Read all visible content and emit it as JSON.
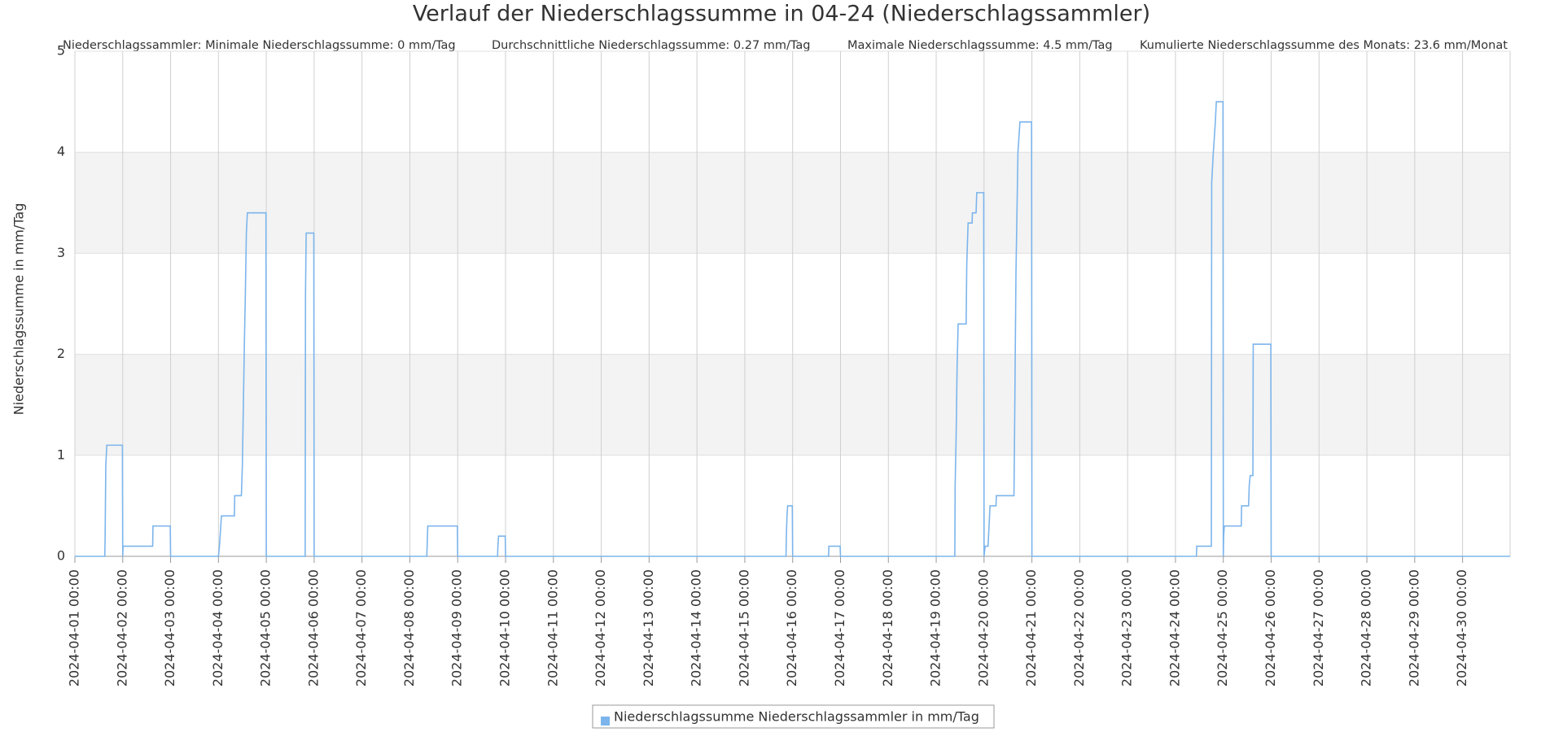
{
  "chart_data": {
    "type": "line",
    "title": "Verlauf der Niederschlagssumme in 04-24 (Niederschlagssammler)",
    "subtitles": [
      "Niederschlagssammler: Minimale Niederschlagssumme: 0 mm/Tag",
      "Durchschnittliche Niederschlagssumme: 0.27 mm/Tag",
      "Maximale Niederschlagssumme: 4.5 mm/Tag",
      "Kumulierte Niederschlagssumme des Monats: 23.6 mm/Monat"
    ],
    "y_label": "Niederschlagssumme in mm/Tag",
    "x": [
      "2024-04-01 00:00",
      "2024-04-01 15:00",
      "2024-04-01 15:10",
      "2024-04-01 15:30",
      "2024-04-01 16:00",
      "2024-04-01 23:50",
      "2024-04-02 00:00",
      "2024-04-02 00:10",
      "2024-04-02 15:00",
      "2024-04-02 15:10",
      "2024-04-02 23:50",
      "2024-04-03 00:00",
      "2024-04-04 00:00",
      "2024-04-04 00:30",
      "2024-04-04 01:30",
      "2024-04-04 08:00",
      "2024-04-04 08:10",
      "2024-04-04 11:30",
      "2024-04-04 12:00",
      "2024-04-04 12:30",
      "2024-04-04 13:00",
      "2024-04-04 13:30",
      "2024-04-04 14:00",
      "2024-04-04 14:30",
      "2024-04-04 23:50",
      "2024-04-05 00:00",
      "2024-04-05 19:30",
      "2024-04-05 19:40",
      "2024-04-05 20:00",
      "2024-04-05 23:50",
      "2024-04-06 00:00",
      "2024-04-08 08:30",
      "2024-04-08 08:40",
      "2024-04-08 09:00",
      "2024-04-08 23:50",
      "2024-04-09 00:00",
      "2024-04-09 20:00",
      "2024-04-09 20:10",
      "2024-04-09 20:30",
      "2024-04-09 23:50",
      "2024-04-10 00:00",
      "2024-04-15 20:40",
      "2024-04-15 20:50",
      "2024-04-15 21:10",
      "2024-04-15 21:30",
      "2024-04-15 23:50",
      "2024-04-16 00:00",
      "2024-04-16 18:00",
      "2024-04-16 18:10",
      "2024-04-16 23:50",
      "2024-04-17 00:00",
      "2024-04-19 09:20",
      "2024-04-19 09:30",
      "2024-04-19 10:00",
      "2024-04-19 10:30",
      "2024-04-19 11:00",
      "2024-04-19 15:00",
      "2024-04-19 15:20",
      "2024-04-19 16:00",
      "2024-04-19 18:00",
      "2024-04-19 18:10",
      "2024-04-19 20:00",
      "2024-04-19 20:20",
      "2024-04-19 23:50",
      "2024-04-20 00:00",
      "2024-04-20 00:30",
      "2024-04-20 02:00",
      "2024-04-20 02:30",
      "2024-04-20 03:00",
      "2024-04-20 06:00",
      "2024-04-20 06:10",
      "2024-04-20 15:00",
      "2024-04-20 15:20",
      "2024-04-20 16:00",
      "2024-04-20 17:00",
      "2024-04-20 18:00",
      "2024-04-20 23:50",
      "2024-04-21 00:00",
      "2024-04-24 10:30",
      "2024-04-24 10:40",
      "2024-04-24 18:00",
      "2024-04-24 18:10",
      "2024-04-24 19:00",
      "2024-04-24 20:00",
      "2024-04-24 20:30",
      "2024-04-24 23:50",
      "2024-04-25 00:00",
      "2024-04-25 00:10",
      "2024-04-25 00:30",
      "2024-04-25 09:00",
      "2024-04-25 09:10",
      "2024-04-25 12:40",
      "2024-04-25 13:00",
      "2024-04-25 13:30",
      "2024-04-25 14:50",
      "2024-04-25 15:00",
      "2024-04-25 23:50",
      "2024-04-26 00:00",
      "2024-04-30 23:50"
    ],
    "series": [
      {
        "name": "Niederschlagssumme Niederschlagssammler in mm/Tag",
        "color": "#7cb5ec",
        "values": [
          0,
          0,
          0.2,
          0.9,
          1.1,
          1.1,
          0,
          0.1,
          0.1,
          0.3,
          0.3,
          0,
          0,
          0.1,
          0.4,
          0.4,
          0.6,
          0.6,
          0.9,
          1.5,
          2.1,
          2.6,
          3.2,
          3.4,
          3.4,
          0,
          0,
          2.6,
          3.2,
          3.2,
          0,
          0,
          0.1,
          0.3,
          0.3,
          0,
          0,
          0.1,
          0.2,
          0.2,
          0,
          0,
          0.2,
          0.4,
          0.5,
          0.5,
          0,
          0,
          0.1,
          0.1,
          0,
          0,
          0.7,
          1.2,
          1.9,
          2.3,
          2.3,
          2.9,
          3.3,
          3.3,
          3.4,
          3.4,
          3.6,
          3.6,
          0,
          0.1,
          0.1,
          0.3,
          0.5,
          0.5,
          0.6,
          0.6,
          1.3,
          2.8,
          4.0,
          4.3,
          4.3,
          0,
          0,
          0.1,
          0.1,
          3.7,
          4.0,
          4.3,
          4.5,
          4.5,
          0,
          0.2,
          0.3,
          0.3,
          0.5,
          0.5,
          0.7,
          0.8,
          0.8,
          2.1,
          2.1,
          0,
          0
        ]
      }
    ],
    "xlim": [
      "2024-04-01 00:00",
      "2024-04-30 23:50"
    ],
    "xticks": [
      "2024-04-01 00:00",
      "2024-04-02 00:00",
      "2024-04-03 00:00",
      "2024-04-04 00:00",
      "2024-04-05 00:00",
      "2024-04-06 00:00",
      "2024-04-07 00:00",
      "2024-04-08 00:00",
      "2024-04-09 00:00",
      "2024-04-10 00:00",
      "2024-04-11 00:00",
      "2024-04-12 00:00",
      "2024-04-13 00:00",
      "2024-04-14 00:00",
      "2024-04-15 00:00",
      "2024-04-16 00:00",
      "2024-04-17 00:00",
      "2024-04-18 00:00",
      "2024-04-19 00:00",
      "2024-04-20 00:00",
      "2024-04-21 00:00",
      "2024-04-22 00:00",
      "2024-04-23 00:00",
      "2024-04-24 00:00",
      "2024-04-25 00:00",
      "2024-04-26 00:00",
      "2024-04-27 00:00",
      "2024-04-28 00:00",
      "2024-04-29 00:00",
      "2024-04-30 00:00"
    ],
    "ylim": [
      0,
      5
    ],
    "yticks": [
      0,
      1,
      2,
      3,
      4,
      5
    ],
    "grid": true
  }
}
